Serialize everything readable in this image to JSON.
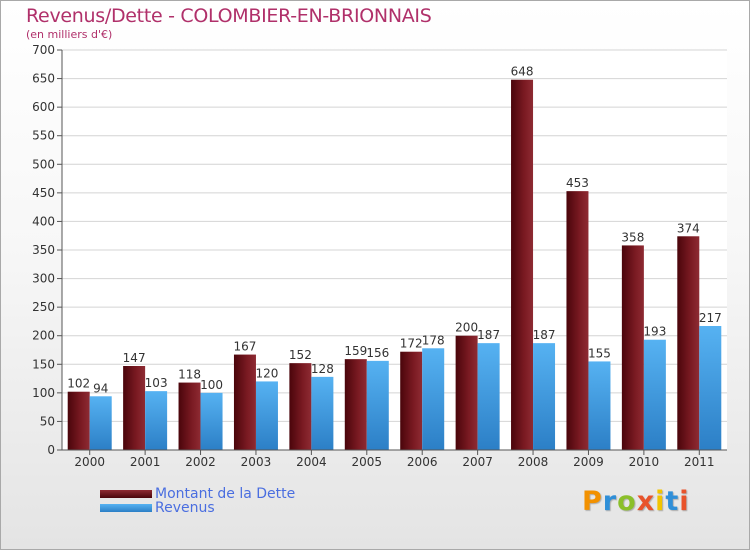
{
  "header": {
    "title": "Revenus/Dette - COLOMBIER-EN-BRIONNAIS",
    "subtitle": "(en milliers d'€)"
  },
  "logo": {
    "text": "Proxiti",
    "letter_colors": [
      "#f29100",
      "#2f8fd8",
      "#8bbf2a",
      "#e8532b",
      "#f2c400",
      "#2f8fd8",
      "#e8532b"
    ]
  },
  "colors": {
    "dette": "#6b0f17",
    "revenus": "#3b9be3",
    "title": "#b0306a",
    "legend_text": "#4a6ee0"
  },
  "chart_data": {
    "type": "bar",
    "title": "Revenus/Dette - COLOMBIER-EN-BRIONNAIS",
    "subtitle": "(en milliers d'€)",
    "categories": [
      "2000",
      "2001",
      "2002",
      "2003",
      "2004",
      "2005",
      "2006",
      "2007",
      "2008",
      "2009",
      "2010",
      "2011"
    ],
    "series": [
      {
        "name": "Montant de la Dette",
        "values": [
          102,
          147,
          118,
          167,
          152,
          159,
          172,
          200,
          648,
          453,
          358,
          374
        ]
      },
      {
        "name": "Revenus",
        "values": [
          94,
          103,
          100,
          120,
          128,
          156,
          178,
          187,
          187,
          155,
          193,
          217
        ]
      }
    ],
    "ylim": [
      0,
      700
    ],
    "yticks": [
      0,
      50,
      100,
      150,
      200,
      250,
      300,
      350,
      400,
      450,
      500,
      550,
      600,
      650,
      700
    ],
    "grid": true,
    "legend_position": "bottom-left",
    "data_labels": true
  }
}
